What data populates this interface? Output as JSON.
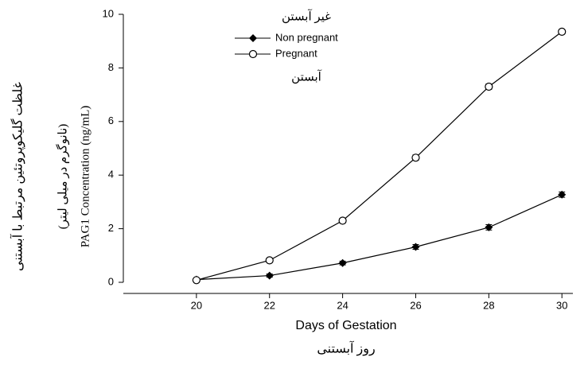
{
  "chart_data": {
    "type": "line",
    "x_label": "Days of Gestation",
    "x_label_fa": "روز آبستنی",
    "y_label": "PAG1 Concentration (ng/mL)",
    "y_label_fa": "غلظت گلیکوپروتئین مرتبط با آبستنی",
    "y_label_fa_2": "(نانوگرم در میلی لیتر)",
    "legend_title_fa": "غیر آبستن",
    "legend_note_fa": "آبستن",
    "x": [
      20,
      22,
      24,
      26,
      28,
      30
    ],
    "series": [
      {
        "name": "Non pregnant",
        "color": "#000000",
        "marker": "filled-diamond",
        "values": [
          0.1,
          0.25,
          0.72,
          1.32,
          2.05,
          3.27
        ],
        "errors": [
          0.05,
          0.06,
          0.07,
          0.09,
          0.1,
          0.1
        ]
      },
      {
        "name": "Pregnant",
        "color": "#000000",
        "marker": "open-circle",
        "values": [
          0.08,
          0.82,
          2.3,
          4.65,
          7.3,
          9.35
        ],
        "errors": [
          0.05,
          0.08,
          0.09,
          0.1,
          0.1,
          0.08
        ]
      }
    ],
    "xlim": [
      18,
      30.3
    ],
    "xticks": [
      20,
      22,
      24,
      26,
      28,
      30
    ],
    "ylim": [
      0,
      10
    ],
    "yticks": [
      0,
      2,
      4,
      6,
      8,
      10
    ],
    "grid": false
  }
}
